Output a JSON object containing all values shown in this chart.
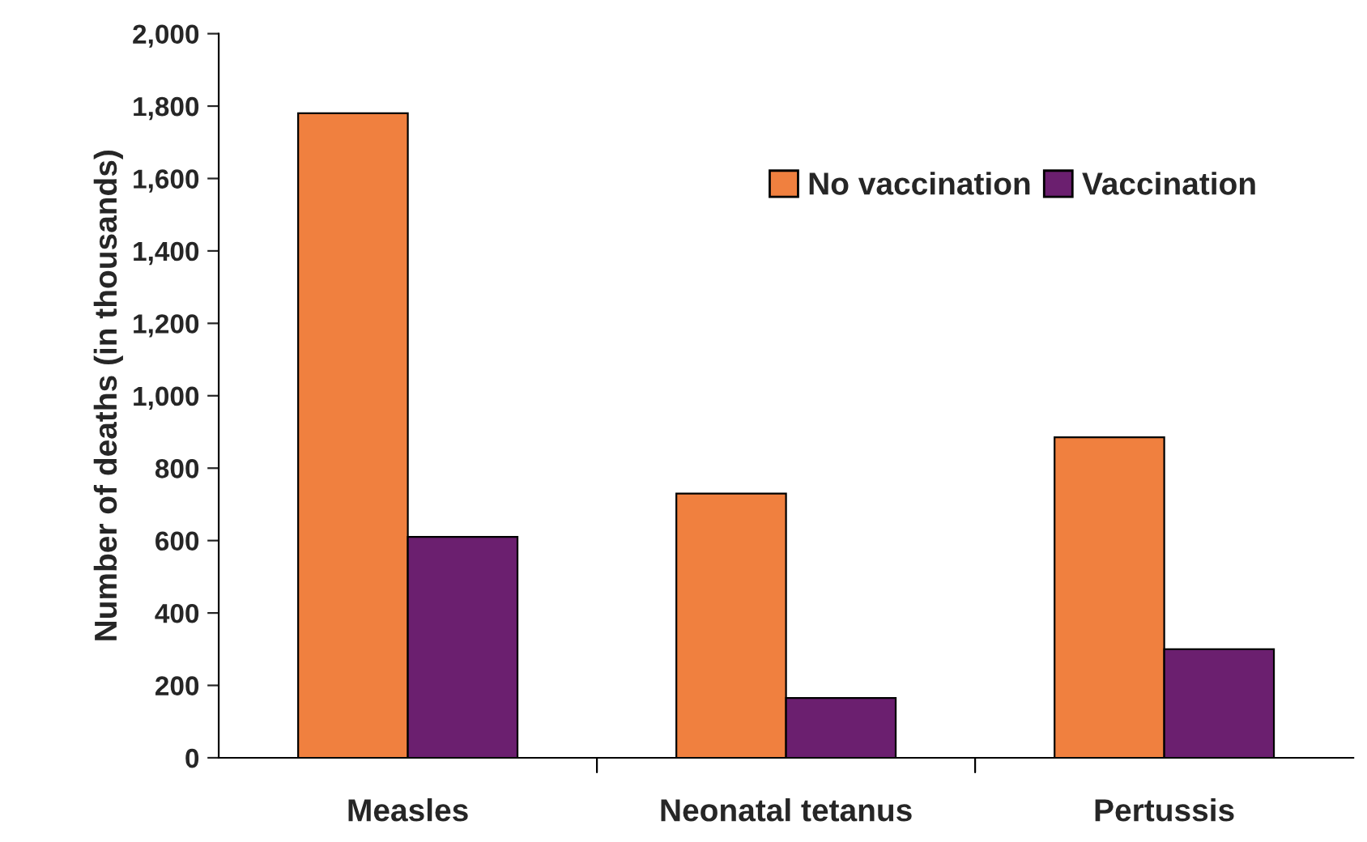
{
  "chart_data": {
    "type": "bar",
    "ylabel": "Number of deaths (in thousands)",
    "categories": [
      "Measles",
      "Neonatal tetanus",
      "Pertussis"
    ],
    "series": [
      {
        "name": "No vaccination",
        "color": "#f0803f",
        "values": [
          1780,
          730,
          885
        ]
      },
      {
        "name": "Vaccination",
        "color": "#6b1f6f",
        "values": [
          610,
          165,
          300
        ]
      }
    ],
    "ylim": [
      0,
      2000
    ],
    "yticks": [
      {
        "value": 0,
        "label": "0"
      },
      {
        "value": 200,
        "label": "200"
      },
      {
        "value": 400,
        "label": "400"
      },
      {
        "value": 600,
        "label": "600"
      },
      {
        "value": 800,
        "label": "800"
      },
      {
        "value": 1000,
        "label": "1,000"
      },
      {
        "value": 1200,
        "label": "1,200"
      },
      {
        "value": 1400,
        "label": "1,400"
      },
      {
        "value": 1600,
        "label": "1,600"
      },
      {
        "value": 1800,
        "label": "1,800"
      },
      {
        "value": 2000,
        "label": "2,000"
      }
    ],
    "grid": false,
    "legend": "top right"
  }
}
